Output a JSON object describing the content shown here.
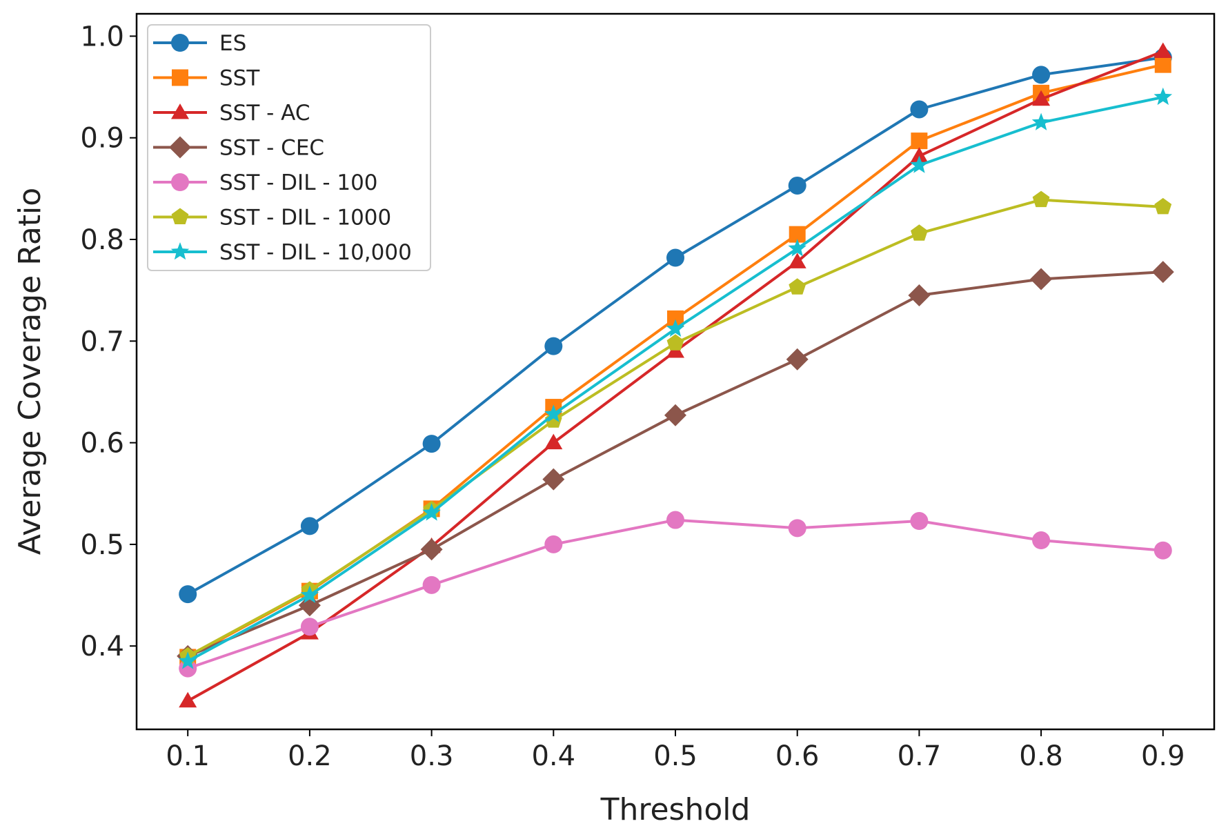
{
  "chart_data": {
    "type": "line",
    "title": "",
    "xlabel": "Threshold",
    "ylabel": "Average Coverage Ratio",
    "x": [
      0.1,
      0.2,
      0.3,
      0.4,
      0.5,
      0.6,
      0.7,
      0.8,
      0.9
    ],
    "x_tick_labels": [
      "0.1",
      "0.2",
      "0.3",
      "0.4",
      "0.5",
      "0.6",
      "0.7",
      "0.8",
      "0.9"
    ],
    "y_ticks": [
      0.4,
      0.5,
      0.6,
      0.7,
      0.8,
      0.9,
      1.0
    ],
    "y_tick_labels": [
      "0.4",
      "0.5",
      "0.6",
      "0.7",
      "0.8",
      "0.9",
      "1.0"
    ],
    "xlim": [
      0.058,
      0.942
    ],
    "ylim": [
      0.318,
      1.022
    ],
    "grid": false,
    "legend_position": "top-left",
    "series": [
      {
        "name": "ES",
        "color": "#1f77b4",
        "marker": "circle",
        "values": [
          0.451,
          0.518,
          0.599,
          0.695,
          0.782,
          0.853,
          0.928,
          0.962,
          0.979
        ]
      },
      {
        "name": "SST",
        "color": "#ff7f0e",
        "marker": "square",
        "values": [
          0.389,
          0.454,
          0.535,
          0.635,
          0.722,
          0.805,
          0.897,
          0.944,
          0.972
        ]
      },
      {
        "name": "SST - AC",
        "color": "#d62728",
        "marker": "triangle",
        "values": [
          0.346,
          0.413,
          0.498,
          0.6,
          0.69,
          0.778,
          0.882,
          0.938,
          0.985
        ]
      },
      {
        "name": "SST - CEC",
        "color": "#8c564b",
        "marker": "diamond",
        "values": [
          0.39,
          0.44,
          0.495,
          0.564,
          0.627,
          0.682,
          0.745,
          0.761,
          0.768
        ]
      },
      {
        "name": "SST - DIL - 100",
        "color": "#e377c2",
        "marker": "circle",
        "values": [
          0.378,
          0.419,
          0.46,
          0.5,
          0.524,
          0.516,
          0.523,
          0.504,
          0.494
        ]
      },
      {
        "name": "SST - DIL - 1000",
        "color": "#bcbd22",
        "marker": "pentagon",
        "values": [
          0.39,
          0.455,
          0.534,
          0.622,
          0.698,
          0.753,
          0.806,
          0.839,
          0.832
        ]
      },
      {
        "name": "SST - DIL - 10,000",
        "color": "#17becf",
        "marker": "star",
        "values": [
          0.385,
          0.45,
          0.531,
          0.628,
          0.712,
          0.791,
          0.873,
          0.915,
          0.94
        ]
      }
    ]
  }
}
